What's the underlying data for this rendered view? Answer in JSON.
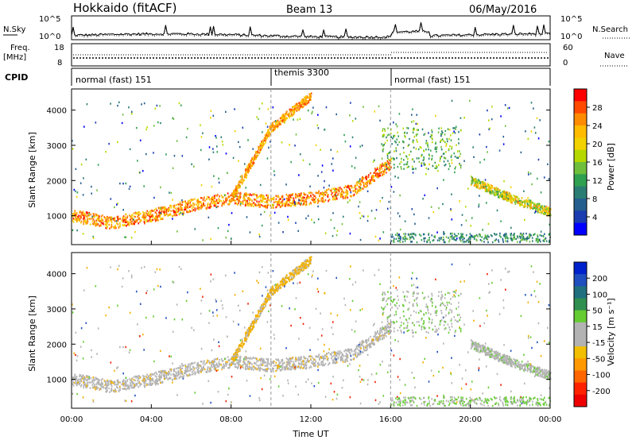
{
  "header": {
    "title": "Hokkaido (fitACF)",
    "beam": "Beam 13",
    "date": "06/May/2016"
  },
  "nsky_panel": {
    "left_label": "N.Sky",
    "left_ticks": [
      "10^5",
      "10^0"
    ],
    "right_label": "N.Search",
    "right_ticks": [
      "10^5",
      "10^0"
    ]
  },
  "freq_panel": {
    "left_label": "Freq.",
    "left_unit": "[MHz]",
    "left_ticks": [
      "18",
      "8"
    ],
    "right_label": "Nave",
    "right_ticks": [
      "60",
      "0"
    ]
  },
  "cpid_panel": {
    "label": "CPID",
    "segments": [
      {
        "name": "normal (fast) 151",
        "start_hour": 0,
        "end_hour": 10
      },
      {
        "name": "themis 3300",
        "start_hour": 10,
        "end_hour": 16
      },
      {
        "name": "normal (fast) 151",
        "start_hour": 16,
        "end_hour": 24
      }
    ]
  },
  "power_panel": {
    "ylabel": "Slant Range [km]",
    "colorbar_label": "Power [dB]",
    "colorbar_ticks": [
      "28",
      "24",
      "20",
      "16",
      "12",
      "8",
      "4"
    ],
    "colorbar_colors": [
      "#ff0000",
      "#ff4a00",
      "#ff8c00",
      "#ffbb00",
      "#f2d200",
      "#b5d900",
      "#6fbe3c",
      "#2f9f50",
      "#2a7d72",
      "#245e8f",
      "#1a3cb0",
      "#0000ff"
    ]
  },
  "velocity_panel": {
    "ylabel": "Slant Range [km]",
    "colorbar_label": "Velocity [m s⁻¹]",
    "colorbar_ticks": [
      "200",
      "100",
      "50",
      "15",
      "-15",
      "-50",
      "-100",
      "-200"
    ],
    "colorbar_colors": [
      "#0022cc",
      "#1f4fbe",
      "#1f6f7f",
      "#2f8f4f",
      "#66cc33",
      "#b3b3b3",
      "#b3b3b3",
      "#f2c000",
      "#ff9900",
      "#ff6600",
      "#ff2200",
      "#ee0000"
    ]
  },
  "x_axis": {
    "label": "Time UT",
    "ticks": [
      "00:00",
      "04:00",
      "08:00",
      "12:00",
      "16:00",
      "20:00",
      "00:00"
    ]
  },
  "chart_data": {
    "type": "heatmap",
    "title": "Hokkaido (fitACF)",
    "xlabel": "Time UT",
    "xlim_hours": [
      0,
      24
    ],
    "y_axes": [
      {
        "label": "Slant Range [km]",
        "ticks": [
          1000,
          2000,
          3000,
          4000
        ],
        "ylim": [
          180,
          4600
        ]
      }
    ],
    "colorbars": [
      {
        "name": "Power [dB]",
        "range": [
          0,
          30
        ]
      },
      {
        "name": "Velocity [m s⁻¹]",
        "range": [
          -200,
          200
        ]
      }
    ],
    "scatter_bands": [
      {
        "name": "main",
        "points": [
          [
            0,
            1000
          ],
          [
            2,
            800
          ],
          [
            4,
            1000
          ],
          [
            6,
            1300
          ],
          [
            8,
            1500
          ],
          [
            10,
            1400
          ],
          [
            12,
            1500
          ],
          [
            14,
            1700
          ],
          [
            16,
            2500
          ]
        ],
        "power": [
          18,
          30
        ],
        "velocity": "mixed_gray"
      },
      {
        "name": "rising_streaks",
        "points": [
          [
            8,
            1500
          ],
          [
            10,
            3500
          ],
          [
            12,
            4400
          ]
        ],
        "power": [
          18,
          28
        ],
        "velocity": "orange"
      },
      {
        "name": "late_band",
        "points": [
          [
            20,
            2000
          ],
          [
            22,
            1500
          ],
          [
            24,
            1100
          ]
        ],
        "power": [
          10,
          26
        ],
        "velocity": "gray"
      }
    ]
  }
}
